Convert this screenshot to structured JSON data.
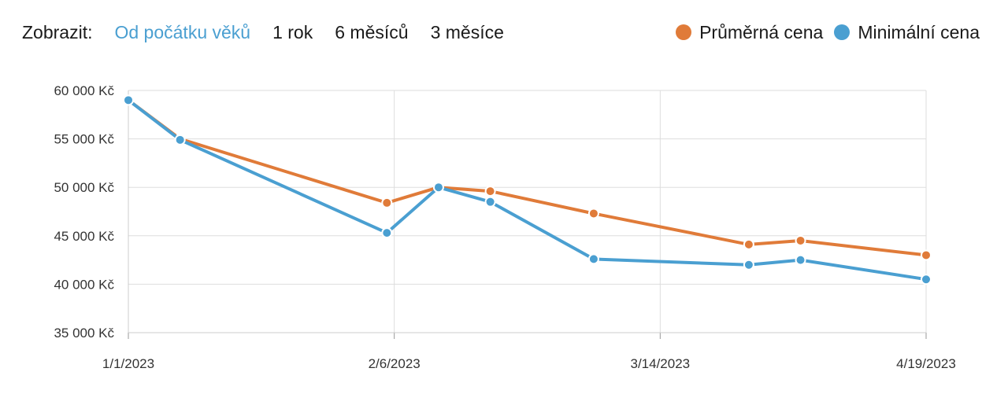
{
  "controls": {
    "label": "Zobrazit:",
    "ranges": [
      {
        "label": "Od počátku věků",
        "active": true
      },
      {
        "label": "1 rok",
        "active": false
      },
      {
        "label": "6 měsíců",
        "active": false
      },
      {
        "label": "3 měsíce",
        "active": false
      }
    ]
  },
  "legend": [
    {
      "label": "Průměrná cena",
      "color": "#e07b39"
    },
    {
      "label": "Minimální cena",
      "color": "#4a9fd1"
    }
  ],
  "chart_data": {
    "type": "line",
    "xlabel": "",
    "ylabel": "",
    "xlim": [
      "2023-01-01",
      "2023-04-19"
    ],
    "ylim": [
      35000,
      60000
    ],
    "x_ticks": [
      "1/1/2023",
      "2/6/2023",
      "3/14/2023",
      "4/19/2023"
    ],
    "y_ticks": [
      "35 000 Kč",
      "40 000 Kč",
      "45 000 Kč",
      "50 000 Kč",
      "55 000 Kč",
      "60 000 Kč"
    ],
    "y_tick_values": [
      35000,
      40000,
      45000,
      50000,
      55000,
      60000
    ],
    "grid": true,
    "legend_position": "top-right",
    "series": [
      {
        "name": "Průměrná cena",
        "color": "#e07b39",
        "points": [
          {
            "x": "2023-01-01",
            "y": 59000
          },
          {
            "x": "2023-01-08",
            "y": 55000
          },
          {
            "x": "2023-02-05",
            "y": 48400
          },
          {
            "x": "2023-02-12",
            "y": 50000
          },
          {
            "x": "2023-02-19",
            "y": 49600
          },
          {
            "x": "2023-03-05",
            "y": 47300
          },
          {
            "x": "2023-03-26",
            "y": 44100
          },
          {
            "x": "2023-04-02",
            "y": 44500
          },
          {
            "x": "2023-04-19",
            "y": 43000
          }
        ]
      },
      {
        "name": "Minimální cena",
        "color": "#4a9fd1",
        "points": [
          {
            "x": "2023-01-01",
            "y": 59000
          },
          {
            "x": "2023-01-08",
            "y": 54900
          },
          {
            "x": "2023-02-05",
            "y": 45300
          },
          {
            "x": "2023-02-12",
            "y": 50000
          },
          {
            "x": "2023-02-19",
            "y": 48500
          },
          {
            "x": "2023-03-05",
            "y": 42600
          },
          {
            "x": "2023-03-26",
            "y": 42000
          },
          {
            "x": "2023-04-02",
            "y": 42500
          },
          {
            "x": "2023-04-19",
            "y": 40500
          }
        ]
      }
    ]
  }
}
